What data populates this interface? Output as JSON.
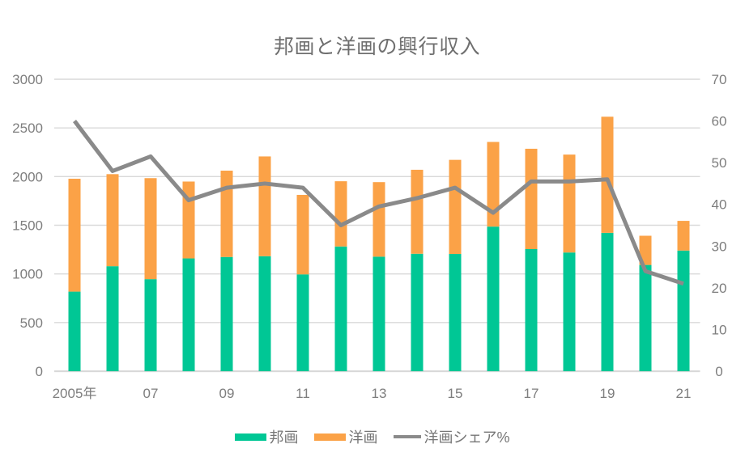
{
  "chart_data": {
    "type": "combo",
    "title": "邦画と洋画の興行収入",
    "categories": [
      "2005",
      "2006",
      "2007",
      "2008",
      "2009",
      "2010",
      "2011",
      "2012",
      "2013",
      "2014",
      "2015",
      "2016",
      "2017",
      "2018",
      "2019",
      "2020",
      "2021"
    ],
    "x_tick_labels": [
      "2005年",
      "",
      "07",
      "",
      "09",
      "",
      "11",
      "",
      "13",
      "",
      "15",
      "",
      "17",
      "",
      "19",
      "",
      "21"
    ],
    "stacked": true,
    "series": [
      {
        "name": "邦画",
        "slug": "japanese-films",
        "type": "bar",
        "axis": "left",
        "color": "#00C795",
        "values": [
          818,
          1079,
          946,
          1159,
          1174,
          1182,
          995,
          1282,
          1177,
          1207,
          1205,
          1486,
          1255,
          1220,
          1422,
          1092,
          1240
        ]
      },
      {
        "name": "洋画",
        "slug": "foreign-films",
        "type": "bar",
        "axis": "left",
        "color": "#FBA247",
        "values": [
          1160,
          946,
          1038,
          790,
          887,
          1025,
          817,
          670,
          766,
          863,
          967,
          870,
          1031,
          1006,
          1193,
          300,
          305
        ]
      },
      {
        "name": "洋画シェア%",
        "slug": "foreign-share-percent",
        "type": "line",
        "axis": "right",
        "color": "#8A8A8A",
        "values": [
          60,
          48,
          51.5,
          41,
          44,
          45,
          44,
          35,
          39.5,
          41.5,
          44,
          38,
          45.5,
          45.5,
          46,
          24,
          21
        ]
      }
    ],
    "left_axis": {
      "min": 0,
      "max": 3000,
      "step": 500,
      "labels": [
        "0",
        "500",
        "1000",
        "1500",
        "2000",
        "2500",
        "3000"
      ]
    },
    "right_axis": {
      "min": 0,
      "max": 70,
      "step": 10,
      "labels": [
        "0",
        "10",
        "20",
        "30",
        "40",
        "50",
        "60",
        "70"
      ]
    },
    "grid": "horizontal",
    "legend": {
      "position": "bottom",
      "items": [
        {
          "label": "邦画",
          "marker": "box",
          "color": "#00C795"
        },
        {
          "label": "洋画",
          "marker": "box",
          "color": "#FBA247"
        },
        {
          "label": "洋画シェア%",
          "marker": "line",
          "color": "#8A8A8A"
        }
      ]
    },
    "styles": {
      "background": "#FFFFFF",
      "grid_color": "#D9D9D9",
      "axis_line_color": "#D9D9D9",
      "tick_label_color": "#7E7E7E",
      "title_color": "#6F6F6F",
      "legend_text_color": "#767676"
    }
  }
}
